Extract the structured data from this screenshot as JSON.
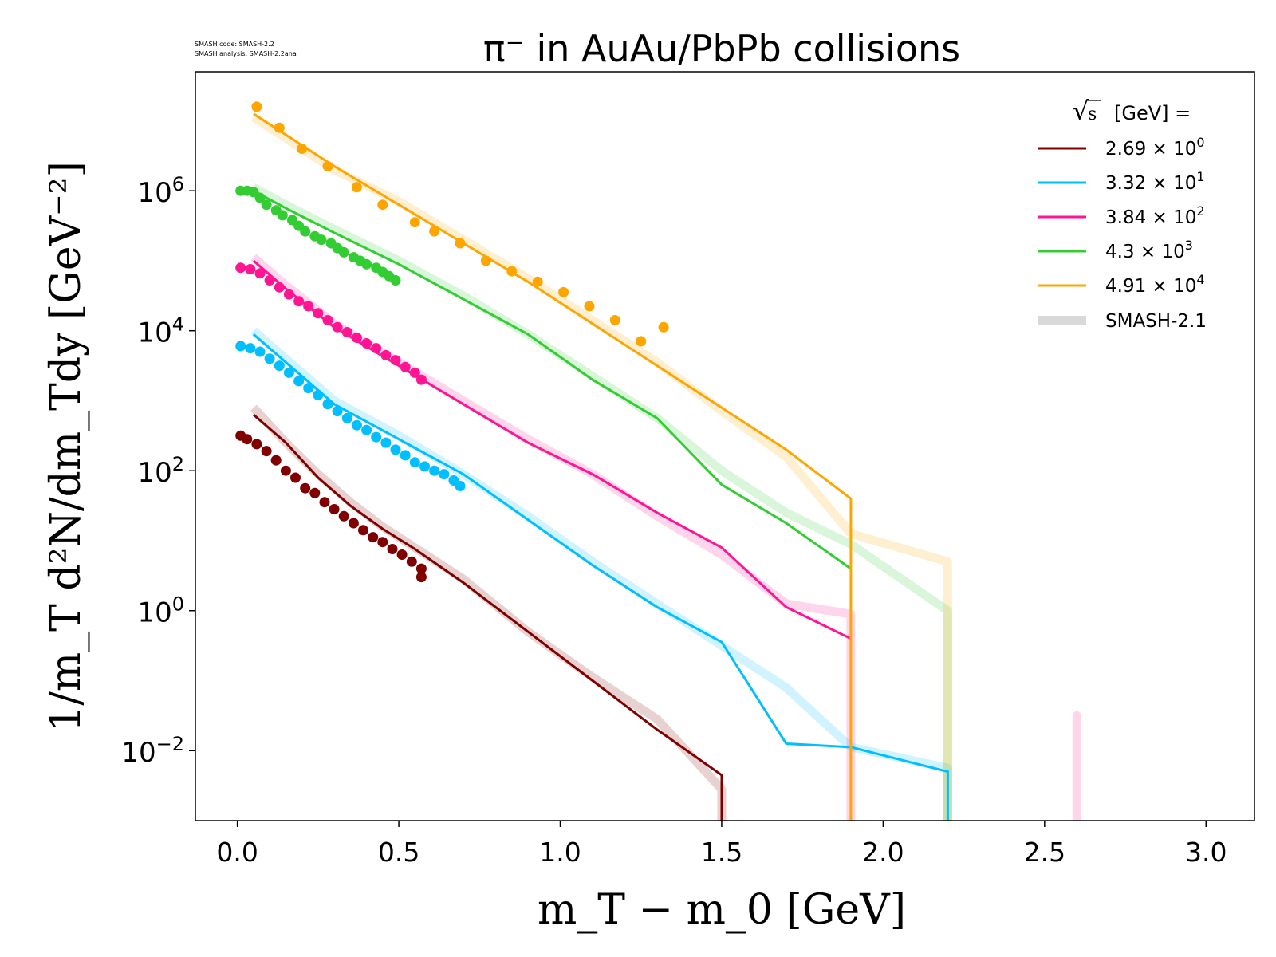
{
  "code_info": {
    "line1": "SMASH code:      SMASH-2.2",
    "line2": "SMASH analysis: SMASH-2.2ana"
  },
  "chart_data": {
    "type": "line",
    "title": "π⁻ in AuAu/PbPb collisions",
    "xlabel": "m_T − m_0 [GeV]",
    "ylabel": "1/m_T d²N/dm_Tdy [GeV⁻²]",
    "xlim": [
      -0.13,
      3.15
    ],
    "ylim": [
      -3.0,
      7.7
    ],
    "y_scale": "log",
    "y_axis_unit_note": "ylim values are log10 exponents",
    "xticks": [
      "0.0",
      "0.5",
      "1.0",
      "1.5",
      "2.0",
      "2.5",
      "3.0"
    ],
    "xtick_values": [
      0.0,
      0.5,
      1.0,
      1.5,
      2.0,
      2.5,
      3.0
    ],
    "ytick_exponents": [
      -2,
      0,
      2,
      4,
      6
    ],
    "grid": false,
    "legend": {
      "placement": "top-right",
      "title": "√s [GeV] =",
      "sqrt_symbol": "√",
      "sqrt_arg": "s",
      "title_rest": "[GeV] ="
    },
    "series": [
      {
        "name_mantissa": "2.69",
        "name_exp": "0",
        "color": "#800000",
        "smash_line": [
          [
            0.05,
            2.8
          ],
          [
            0.15,
            2.4
          ],
          [
            0.25,
            1.9
          ],
          [
            0.35,
            1.5
          ],
          [
            0.45,
            1.17
          ],
          [
            0.55,
            0.88
          ],
          [
            0.7,
            0.4
          ],
          [
            0.9,
            -0.3
          ],
          [
            1.1,
            -1.0
          ],
          [
            1.3,
            -1.7
          ],
          [
            1.5,
            -2.35
          ],
          [
            1.5,
            -3.0
          ]
        ],
        "smash21_line": [
          [
            0.05,
            2.9
          ],
          [
            0.15,
            2.4
          ],
          [
            0.25,
            1.95
          ],
          [
            0.35,
            1.55
          ],
          [
            0.45,
            1.2
          ],
          [
            0.55,
            0.9
          ],
          [
            0.7,
            0.45
          ],
          [
            0.9,
            -0.3
          ],
          [
            1.1,
            -0.95
          ],
          [
            1.3,
            -1.55
          ],
          [
            1.5,
            -2.55
          ],
          [
            1.5,
            -3.0
          ]
        ],
        "points": [
          [
            0.01,
            2.5
          ],
          [
            0.03,
            2.45
          ],
          [
            0.06,
            2.38
          ],
          [
            0.09,
            2.28
          ],
          [
            0.12,
            2.15
          ],
          [
            0.15,
            2.0
          ],
          [
            0.18,
            1.9
          ],
          [
            0.21,
            1.75
          ],
          [
            0.24,
            1.68
          ],
          [
            0.27,
            1.55
          ],
          [
            0.3,
            1.45
          ],
          [
            0.33,
            1.35
          ],
          [
            0.36,
            1.25
          ],
          [
            0.39,
            1.15
          ],
          [
            0.42,
            1.05
          ],
          [
            0.45,
            0.98
          ],
          [
            0.48,
            0.88
          ],
          [
            0.51,
            0.8
          ],
          [
            0.54,
            0.7
          ],
          [
            0.57,
            0.6
          ],
          [
            0.57,
            0.48
          ]
        ]
      },
      {
        "name_mantissa": "3.32",
        "name_exp": "1",
        "color": "#00bfff",
        "smash_line": [
          [
            0.05,
            3.95
          ],
          [
            0.15,
            3.55
          ],
          [
            0.3,
            2.95
          ],
          [
            0.5,
            2.45
          ],
          [
            0.7,
            1.95
          ],
          [
            0.9,
            1.3
          ],
          [
            1.1,
            0.65
          ],
          [
            1.3,
            0.05
          ],
          [
            1.5,
            -0.45
          ],
          [
            1.7,
            -1.9
          ],
          [
            1.9,
            -1.95
          ],
          [
            2.2,
            -2.3
          ],
          [
            2.2,
            -3.0
          ]
        ],
        "smash21_line": [
          [
            0.05,
            4.0
          ],
          [
            0.15,
            3.6
          ],
          [
            0.3,
            3.0
          ],
          [
            0.5,
            2.5
          ],
          [
            0.7,
            1.95
          ],
          [
            0.9,
            1.35
          ],
          [
            1.1,
            0.7
          ],
          [
            1.3,
            0.1
          ],
          [
            1.5,
            -0.5
          ],
          [
            1.7,
            -1.1
          ],
          [
            1.9,
            -1.95
          ],
          [
            2.2,
            -2.25
          ],
          [
            2.2,
            -3.0
          ]
        ],
        "points": [
          [
            0.01,
            3.78
          ],
          [
            0.04,
            3.75
          ],
          [
            0.07,
            3.7
          ],
          [
            0.1,
            3.6
          ],
          [
            0.13,
            3.5
          ],
          [
            0.16,
            3.4
          ],
          [
            0.19,
            3.28
          ],
          [
            0.22,
            3.18
          ],
          [
            0.25,
            3.08
          ],
          [
            0.28,
            2.95
          ],
          [
            0.31,
            2.85
          ],
          [
            0.34,
            2.75
          ],
          [
            0.37,
            2.65
          ],
          [
            0.4,
            2.58
          ],
          [
            0.43,
            2.48
          ],
          [
            0.46,
            2.4
          ],
          [
            0.49,
            2.3
          ],
          [
            0.52,
            2.22
          ],
          [
            0.55,
            2.12
          ],
          [
            0.58,
            2.06
          ],
          [
            0.61,
            2.0
          ],
          [
            0.64,
            1.95
          ],
          [
            0.67,
            1.86
          ],
          [
            0.69,
            1.78
          ]
        ]
      },
      {
        "name_mantissa": "3.84",
        "name_exp": "2",
        "color": "#ff1493",
        "smash_line": [
          [
            0.05,
            5.0
          ],
          [
            0.15,
            4.6
          ],
          [
            0.3,
            4.05
          ],
          [
            0.5,
            3.5
          ],
          [
            0.7,
            2.95
          ],
          [
            0.9,
            2.4
          ],
          [
            1.1,
            1.95
          ],
          [
            1.3,
            1.4
          ],
          [
            1.5,
            0.9
          ],
          [
            1.7,
            0.05
          ],
          [
            1.9,
            -0.4
          ],
          [
            1.9,
            -0.4
          ]
        ],
        "smash21_line": [
          [
            0.05,
            5.05
          ],
          [
            0.15,
            4.65
          ],
          [
            0.3,
            4.1
          ],
          [
            0.5,
            3.55
          ],
          [
            0.7,
            3.0
          ],
          [
            0.9,
            2.45
          ],
          [
            1.1,
            1.95
          ],
          [
            1.3,
            1.35
          ],
          [
            1.5,
            0.8
          ],
          [
            1.7,
            0.1
          ],
          [
            1.9,
            -0.05
          ],
          [
            1.9,
            -3.0
          ]
        ],
        "extra_line": [
          [
            2.6,
            -1.5
          ],
          [
            2.6,
            -3.0
          ]
        ],
        "points": [
          [
            0.01,
            4.9
          ],
          [
            0.04,
            4.88
          ],
          [
            0.07,
            4.82
          ],
          [
            0.1,
            4.72
          ],
          [
            0.13,
            4.62
          ],
          [
            0.16,
            4.52
          ],
          [
            0.19,
            4.42
          ],
          [
            0.22,
            4.35
          ],
          [
            0.25,
            4.25
          ],
          [
            0.28,
            4.15
          ],
          [
            0.31,
            4.05
          ],
          [
            0.34,
            3.98
          ],
          [
            0.37,
            3.9
          ],
          [
            0.4,
            3.82
          ],
          [
            0.43,
            3.75
          ],
          [
            0.46,
            3.65
          ],
          [
            0.49,
            3.58
          ],
          [
            0.52,
            3.48
          ],
          [
            0.55,
            3.4
          ],
          [
            0.57,
            3.3
          ]
        ]
      },
      {
        "name_mantissa": "4.3",
        "name_exp": "3",
        "color": "#32cd32",
        "smash_line": [
          [
            0.05,
            6.0
          ],
          [
            0.15,
            5.75
          ],
          [
            0.3,
            5.4
          ],
          [
            0.5,
            4.95
          ],
          [
            0.7,
            4.45
          ],
          [
            0.9,
            3.95
          ],
          [
            1.1,
            3.3
          ],
          [
            1.3,
            2.75
          ],
          [
            1.5,
            1.8
          ],
          [
            1.7,
            1.25
          ],
          [
            1.9,
            0.6
          ]
        ],
        "smash21_line": [
          [
            0.05,
            6.05
          ],
          [
            0.15,
            5.8
          ],
          [
            0.3,
            5.45
          ],
          [
            0.5,
            5.0
          ],
          [
            0.7,
            4.5
          ],
          [
            0.9,
            3.95
          ],
          [
            1.1,
            3.35
          ],
          [
            1.3,
            2.75
          ],
          [
            1.5,
            2.0
          ],
          [
            1.7,
            1.4
          ],
          [
            1.9,
            0.95
          ],
          [
            2.2,
            0.0
          ],
          [
            2.2,
            -3.0
          ]
        ],
        "points": [
          [
            0.01,
            6.0
          ],
          [
            0.03,
            6.0
          ],
          [
            0.05,
            5.98
          ],
          [
            0.07,
            5.9
          ],
          [
            0.09,
            5.8
          ],
          [
            0.12,
            5.72
          ],
          [
            0.14,
            5.65
          ],
          [
            0.17,
            5.58
          ],
          [
            0.19,
            5.5
          ],
          [
            0.21,
            5.42
          ],
          [
            0.24,
            5.35
          ],
          [
            0.26,
            5.3
          ],
          [
            0.29,
            5.25
          ],
          [
            0.31,
            5.18
          ],
          [
            0.33,
            5.12
          ],
          [
            0.36,
            5.05
          ],
          [
            0.38,
            5.0
          ],
          [
            0.4,
            4.95
          ],
          [
            0.43,
            4.9
          ],
          [
            0.45,
            4.84
          ],
          [
            0.47,
            4.78
          ],
          [
            0.49,
            4.72
          ]
        ]
      },
      {
        "name_mantissa": "4.91",
        "name_exp": "4",
        "color": "#ffa500",
        "smash_line": [
          [
            0.05,
            7.1
          ],
          [
            0.15,
            6.8
          ],
          [
            0.3,
            6.35
          ],
          [
            0.5,
            5.8
          ],
          [
            0.7,
            5.25
          ],
          [
            0.9,
            4.7
          ],
          [
            1.1,
            4.1
          ],
          [
            1.3,
            3.5
          ],
          [
            1.5,
            2.9
          ],
          [
            1.7,
            2.3
          ],
          [
            1.9,
            1.6
          ],
          [
            1.9,
            -3.0
          ]
        ],
        "smash21_line": [
          [
            0.05,
            7.05
          ],
          [
            0.15,
            6.75
          ],
          [
            0.3,
            6.3
          ],
          [
            0.5,
            5.85
          ],
          [
            0.7,
            5.3
          ],
          [
            0.9,
            4.75
          ],
          [
            1.1,
            4.15
          ],
          [
            1.3,
            3.55
          ],
          [
            1.5,
            2.85
          ],
          [
            1.7,
            2.2
          ],
          [
            1.9,
            1.1
          ],
          [
            2.2,
            0.7
          ],
          [
            2.2,
            -3.0
          ]
        ],
        "points": [
          [
            0.06,
            7.2
          ],
          [
            0.13,
            6.9
          ],
          [
            0.2,
            6.6
          ],
          [
            0.28,
            6.35
          ],
          [
            0.37,
            6.05
          ],
          [
            0.45,
            5.8
          ],
          [
            0.55,
            5.55
          ],
          [
            0.61,
            5.42
          ],
          [
            0.69,
            5.25
          ],
          [
            0.77,
            5.0
          ],
          [
            0.85,
            4.85
          ],
          [
            0.93,
            4.7
          ],
          [
            1.01,
            4.55
          ],
          [
            1.09,
            4.35
          ],
          [
            1.17,
            4.15
          ],
          [
            1.25,
            3.85
          ],
          [
            1.32,
            4.05
          ]
        ]
      }
    ],
    "reference": {
      "name": "SMASH-2.1",
      "color": "#d9d9d9"
    }
  }
}
